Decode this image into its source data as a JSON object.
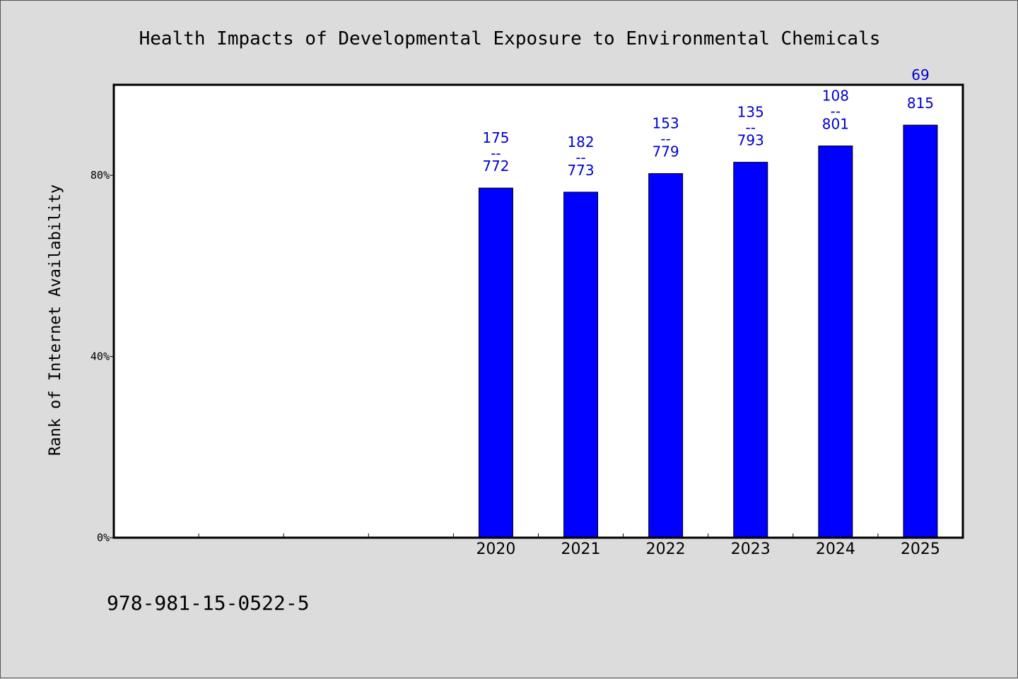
{
  "colors": {
    "background": "#dcdcdc",
    "plot_background": "#ffffff",
    "bar_fill": "#0000ff",
    "data_label": "#0000cc"
  },
  "footer": {
    "text": "978-981-15-0522-5"
  },
  "chart_data": {
    "type": "bar",
    "title": "Health Impacts of Developmental Exposure to Environmental Chemicals",
    "xlabel": "",
    "ylabel": "Rank of Internet Availability",
    "categories": [
      "",
      "",
      "",
      "",
      "2020",
      "2021",
      "2022",
      "2023",
      "2024",
      "2025"
    ],
    "values": [
      null,
      null,
      null,
      null,
      77.2,
      76.3,
      80.4,
      82.9,
      86.5,
      91.1
    ],
    "data_labels": [
      null,
      null,
      null,
      null,
      {
        "top": "175",
        "mid": "--",
        "bottom": "772"
      },
      {
        "top": "182",
        "mid": "--",
        "bottom": "773"
      },
      {
        "top": "153",
        "mid": "--",
        "bottom": "779"
      },
      {
        "top": "135",
        "mid": "--",
        "bottom": "793"
      },
      {
        "top": "108",
        "mid": "--",
        "bottom": "801"
      },
      {
        "top": "69",
        "mid": "",
        "bottom": "815"
      }
    ],
    "ylim": [
      0,
      100
    ],
    "yticks": [
      0,
      40,
      80
    ],
    "ytick_labels": [
      "0%",
      "40%",
      "80%"
    ],
    "grid": false,
    "legend": "none"
  }
}
